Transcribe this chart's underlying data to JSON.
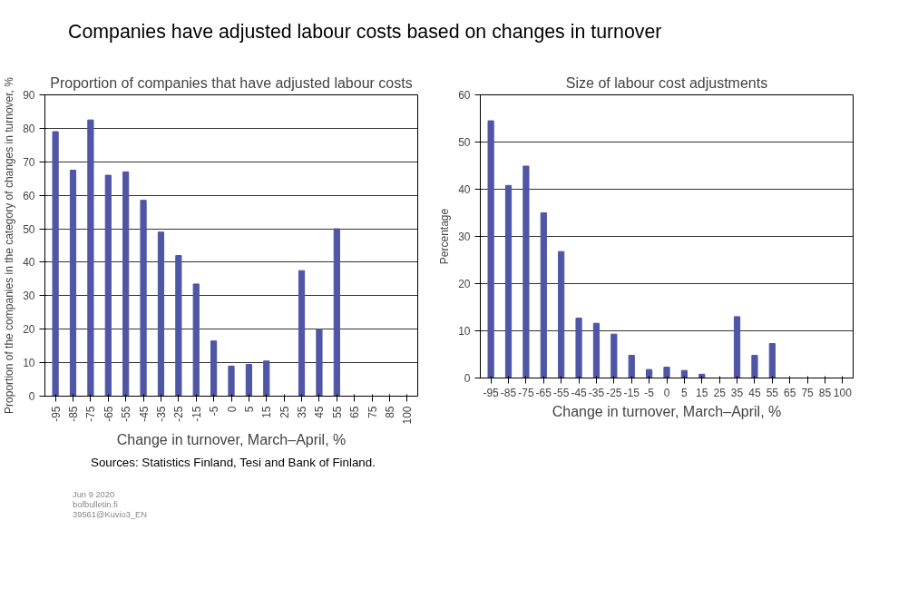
{
  "chart_data": [
    {
      "type": "bar",
      "title": "Companies have adjusted labour costs based on changes in turnover",
      "subtitle": "Proportion of companies that have adjusted labour costs",
      "xlabel": "Change in turnover, March–April, %",
      "ylabel": "Proportion of the companies in the category of changes in turnover, %",
      "categories": [
        "-95",
        "-85",
        "-75",
        "-65",
        "-55",
        "-45",
        "-35",
        "-25",
        "-15",
        "-5",
        "0",
        "5",
        "15",
        "25",
        "35",
        "45",
        "55",
        "65",
        "75",
        "85",
        "100"
      ],
      "values": [
        79,
        67.5,
        82.5,
        66,
        67,
        58.5,
        49,
        42,
        33.5,
        16.5,
        9,
        9.5,
        10.5,
        null,
        37.5,
        20,
        50,
        null,
        null,
        null,
        null
      ],
      "color": "#4f56a5",
      "ylim": [
        0,
        90
      ],
      "yticks": [
        0,
        10,
        20,
        30,
        40,
        50,
        60,
        70,
        80,
        90
      ],
      "grid": "y",
      "annotations": [
        "Sources: Statistics Finland, Tesi and Bank of Finland.",
        "Jun 9 2020",
        "bofbulletin.fi",
        "39561@Kuvio3_EN"
      ]
    },
    {
      "type": "bar",
      "title": "Size of labour cost adjustments",
      "xlabel": "Change in turnover, March–April, %",
      "ylabel": "Percentage",
      "categories": [
        "-95",
        "-85",
        "-75",
        "-65",
        "-55",
        "-45",
        "-35",
        "-25",
        "-15",
        "-5",
        "0",
        "5",
        "15",
        "25",
        "35",
        "45",
        "55",
        "65",
        "75",
        "85",
        "100"
      ],
      "values": [
        54.5,
        40.8,
        44.9,
        35,
        26.8,
        12.7,
        11.6,
        9.3,
        4.8,
        1.8,
        2.3,
        1.6,
        0.8,
        null,
        13,
        4.8,
        7.3,
        null,
        null,
        null,
        null
      ],
      "color": "#4f56a5",
      "ylim": [
        0,
        60
      ],
      "yticks": [
        0,
        10,
        20,
        30,
        40,
        50,
        60
      ],
      "grid": "y"
    }
  ]
}
